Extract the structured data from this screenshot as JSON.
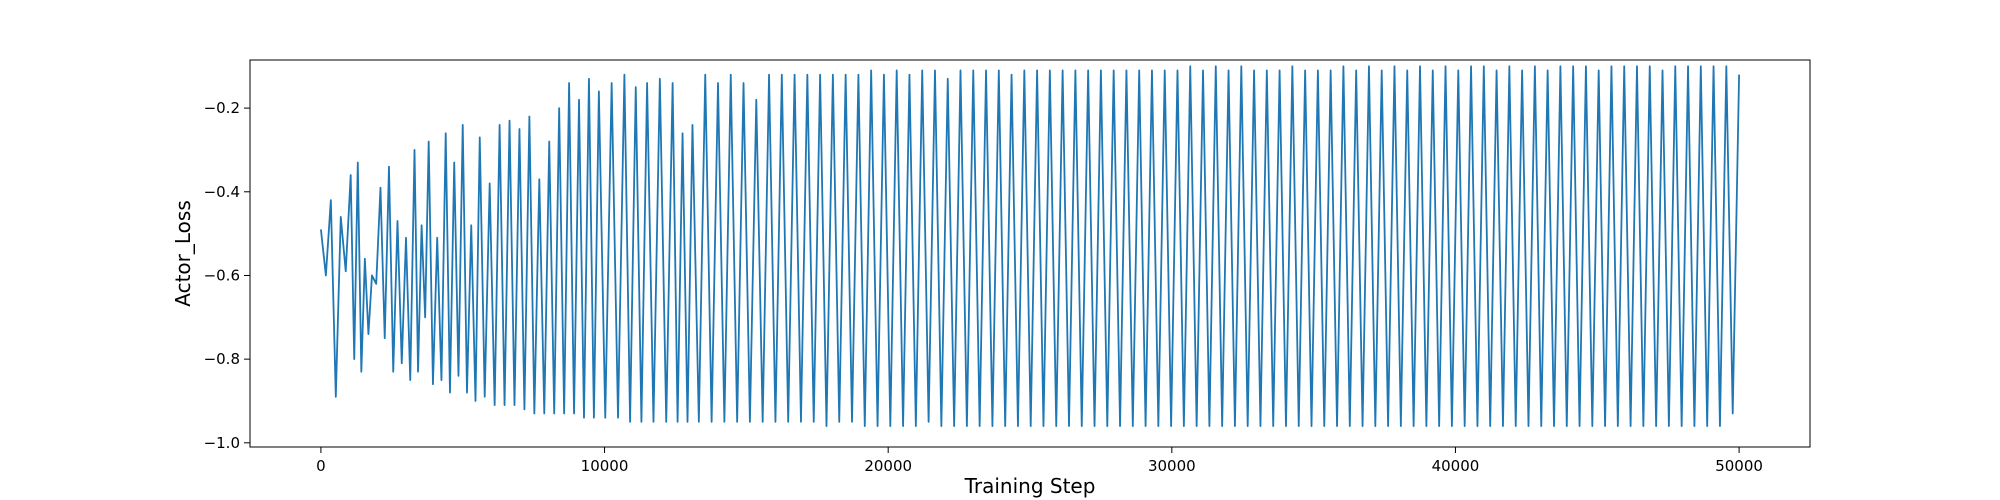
{
  "chart_data": {
    "type": "line",
    "title": "",
    "xlabel": "Training Step",
    "ylabel": "Actor_Loss",
    "xlim": [
      -2500,
      52500
    ],
    "ylim": [
      -1.01,
      -0.085
    ],
    "xticks": [
      0,
      10000,
      20000,
      30000,
      40000,
      50000
    ],
    "xtick_labels": [
      "0",
      "10000",
      "20000",
      "30000",
      "40000",
      "50000"
    ],
    "yticks": [
      -1.0,
      -0.8,
      -0.6,
      -0.4,
      -0.2
    ],
    "ytick_labels": [
      "−1.0",
      "−0.8",
      "−0.6",
      "−0.4",
      "−0.2"
    ],
    "grid": false,
    "legend": "none",
    "line_color": "#1f77b4",
    "series": [
      {
        "x_start": 0,
        "x_end": 50000,
        "peaks_x": [
          0,
          350,
          700,
          1050,
          1300,
          1550,
          1800,
          2100,
          2400,
          2700,
          3000,
          3300,
          3550,
          3800,
          4100,
          4400,
          4700,
          5000,
          5300,
          5600,
          5950,
          6300,
          6650,
          7000,
          7350,
          7700,
          8050,
          8400,
          8750,
          9100,
          9450,
          9800,
          10250,
          10700,
          11100,
          11500,
          11950,
          12400,
          12750,
          13100,
          13550,
          14000,
          14450,
          14900,
          15350,
          15800,
          16250,
          16700,
          17150,
          17600,
          18050,
          18500,
          18950,
          19400,
          19850,
          20300,
          20750,
          21200,
          21650,
          22100,
          22550,
          23000,
          23450,
          23900,
          24350,
          24800,
          25250,
          25700,
          26150,
          26600,
          27050,
          27500,
          27950,
          28400,
          28850,
          29300,
          29750,
          30200,
          30650,
          31100,
          31550,
          32000,
          32450,
          32900,
          33350,
          33800,
          34250,
          34700,
          35150,
          35600,
          36050,
          36500,
          36950,
          37400,
          37850,
          38300,
          38750,
          39200,
          39650,
          40100,
          40550,
          41000,
          41450,
          41900,
          42350,
          42800,
          43250,
          43700,
          44150,
          44600,
          45050,
          45500,
          45950,
          46400,
          46850,
          47300,
          47750,
          48200,
          48650,
          49100,
          49550,
          50000
        ],
        "peaks_y": [
          -0.49,
          -0.42,
          -0.46,
          -0.36,
          -0.33,
          -0.56,
          -0.6,
          -0.39,
          -0.34,
          -0.47,
          -0.51,
          -0.3,
          -0.48,
          -0.28,
          -0.51,
          -0.26,
          -0.33,
          -0.24,
          -0.48,
          -0.27,
          -0.38,
          -0.24,
          -0.23,
          -0.25,
          -0.22,
          -0.37,
          -0.28,
          -0.2,
          -0.14,
          -0.18,
          -0.13,
          -0.16,
          -0.14,
          -0.12,
          -0.15,
          -0.14,
          -0.13,
          -0.14,
          -0.26,
          -0.24,
          -0.12,
          -0.14,
          -0.12,
          -0.14,
          -0.18,
          -0.12,
          -0.12,
          -0.12,
          -0.12,
          -0.12,
          -0.12,
          -0.12,
          -0.12,
          -0.11,
          -0.12,
          -0.11,
          -0.12,
          -0.11,
          -0.11,
          -0.13,
          -0.11,
          -0.11,
          -0.11,
          -0.11,
          -0.12,
          -0.11,
          -0.11,
          -0.11,
          -0.11,
          -0.11,
          -0.11,
          -0.11,
          -0.11,
          -0.11,
          -0.11,
          -0.11,
          -0.11,
          -0.11,
          -0.1,
          -0.11,
          -0.1,
          -0.11,
          -0.1,
          -0.11,
          -0.11,
          -0.11,
          -0.1,
          -0.11,
          -0.11,
          -0.11,
          -0.1,
          -0.11,
          -0.1,
          -0.11,
          -0.1,
          -0.11,
          -0.1,
          -0.11,
          -0.1,
          -0.11,
          -0.1,
          -0.1,
          -0.11,
          -0.1,
          -0.11,
          -0.1,
          -0.11,
          -0.1,
          -0.1,
          -0.1,
          -0.11,
          -0.1,
          -0.1,
          -0.1,
          -0.1,
          -0.11,
          -0.1,
          -0.1,
          -0.1,
          -0.1,
          -0.1,
          -0.12
        ],
        "troughs_x": [
          175,
          525,
          875,
          1175,
          1425,
          1675,
          1950,
          2250,
          2550,
          2850,
          3150,
          3425,
          3675,
          3950,
          4250,
          4550,
          4850,
          5150,
          5450,
          5775,
          6125,
          6475,
          6825,
          7175,
          7525,
          7875,
          8225,
          8575,
          8925,
          9275,
          9625,
          10025,
          10475,
          10900,
          11300,
          11725,
          12175,
          12575,
          12925,
          13325,
          13775,
          14225,
          14675,
          15125,
          15575,
          16025,
          16475,
          16925,
          17375,
          17825,
          18275,
          18725,
          19175,
          19625,
          20075,
          20525,
          20975,
          21425,
          21875,
          22325,
          22775,
          23225,
          23675,
          24125,
          24575,
          25025,
          25475,
          25925,
          26375,
          26825,
          27275,
          27725,
          28175,
          28625,
          29075,
          29525,
          29975,
          30425,
          30875,
          31325,
          31775,
          32225,
          32675,
          33125,
          33575,
          34025,
          34475,
          34925,
          35375,
          35825,
          36275,
          36725,
          37175,
          37625,
          38075,
          38525,
          38975,
          39425,
          39875,
          40325,
          40775,
          41225,
          41675,
          42125,
          42575,
          43025,
          43475,
          43925,
          44375,
          44825,
          45275,
          45725,
          46175,
          46625,
          47075,
          47525,
          47975,
          48425,
          48875,
          49325,
          49775
        ],
        "troughs_y": [
          -0.6,
          -0.89,
          -0.59,
          -0.8,
          -0.83,
          -0.74,
          -0.62,
          -0.75,
          -0.83,
          -0.81,
          -0.85,
          -0.83,
          -0.7,
          -0.86,
          -0.85,
          -0.88,
          -0.84,
          -0.88,
          -0.9,
          -0.89,
          -0.91,
          -0.91,
          -0.91,
          -0.92,
          -0.93,
          -0.93,
          -0.93,
          -0.93,
          -0.93,
          -0.94,
          -0.94,
          -0.94,
          -0.94,
          -0.95,
          -0.95,
          -0.95,
          -0.95,
          -0.95,
          -0.95,
          -0.95,
          -0.95,
          -0.95,
          -0.95,
          -0.95,
          -0.95,
          -0.95,
          -0.95,
          -0.95,
          -0.95,
          -0.96,
          -0.95,
          -0.95,
          -0.96,
          -0.96,
          -0.96,
          -0.96,
          -0.96,
          -0.95,
          -0.96,
          -0.96,
          -0.96,
          -0.96,
          -0.96,
          -0.96,
          -0.96,
          -0.96,
          -0.96,
          -0.96,
          -0.96,
          -0.96,
          -0.96,
          -0.96,
          -0.96,
          -0.96,
          -0.96,
          -0.96,
          -0.96,
          -0.96,
          -0.96,
          -0.96,
          -0.96,
          -0.96,
          -0.96,
          -0.96,
          -0.96,
          -0.96,
          -0.96,
          -0.96,
          -0.96,
          -0.96,
          -0.96,
          -0.96,
          -0.96,
          -0.96,
          -0.96,
          -0.96,
          -0.96,
          -0.96,
          -0.96,
          -0.96,
          -0.96,
          -0.96,
          -0.96,
          -0.96,
          -0.96,
          -0.96,
          -0.96,
          -0.96,
          -0.96,
          -0.96,
          -0.96,
          -0.96,
          -0.96,
          -0.96,
          -0.96,
          -0.96,
          -0.96,
          -0.96,
          -0.96,
          -0.96,
          -0.93
        ]
      }
    ]
  }
}
